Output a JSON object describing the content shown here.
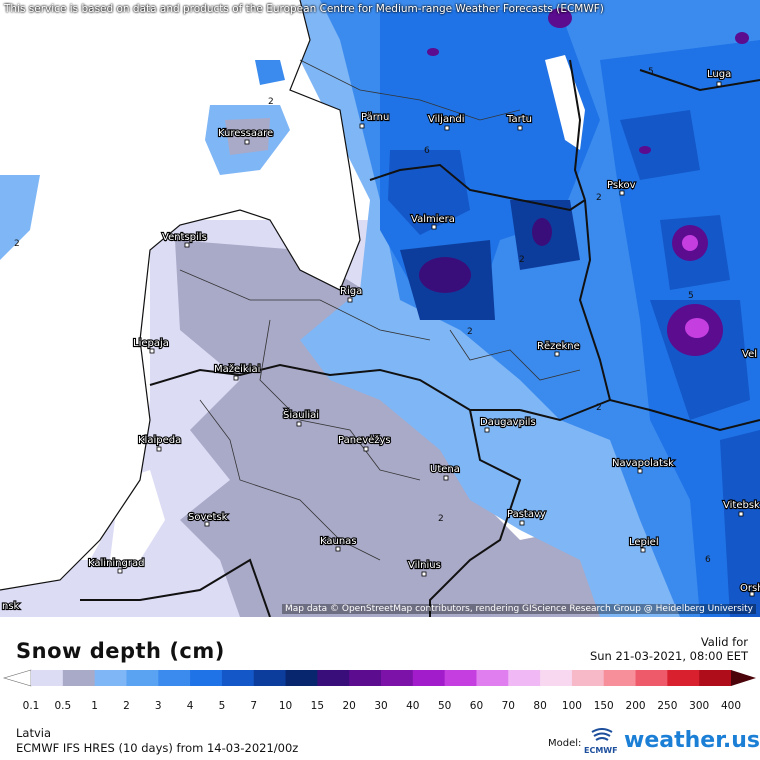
{
  "attribution_top": "This service is based on data and products of the European Centre for Medium-range Weather Forecasts (ECMWF)",
  "attribution_bottom": "Map data © OpenStreetMap contributors, rendering GIScience Research Group @ Heidelberg University",
  "title": "Snow depth (cm)",
  "valid_label": "Valid for",
  "valid_time": "Sun 21-03-2021, 08:00 EET",
  "region": "Latvia",
  "model_run": "ECMWF IFS HRES (10 days) from 14-03-2021/00z",
  "model_label": "Model:",
  "model_logo_text": "ECMWF",
  "brand": "weather.us",
  "legend": {
    "ticks": [
      "0.1",
      "0.5",
      "1",
      "2",
      "3",
      "4",
      "5",
      "7",
      "10",
      "15",
      "20",
      "30",
      "40",
      "50",
      "60",
      "70",
      "80",
      "100",
      "150",
      "200",
      "250",
      "300",
      "400"
    ],
    "colors": [
      "#dcdcf5",
      "#a9a9c8",
      "#7fb6f5",
      "#5aa2f2",
      "#3b8bef",
      "#1f73e6",
      "#1457c8",
      "#0c3d9c",
      "#08266e",
      "#3a0e7a",
      "#5b0c8f",
      "#7d12a8",
      "#a21ccc",
      "#c43ee0",
      "#e07ef0",
      "#f0b8f5",
      "#f7d8f0",
      "#f7b8c8",
      "#f78f9a",
      "#ee5a6a",
      "#d8202f",
      "#b00d1a",
      "#800812",
      "#4a040a"
    ]
  },
  "cities": [
    {
      "name": "Pärnu"
    },
    {
      "name": "Viljandi"
    },
    {
      "name": "Tartu"
    },
    {
      "name": "Luga"
    },
    {
      "name": "Kuressaare"
    },
    {
      "name": "Pskov"
    },
    {
      "name": "Valmiera"
    },
    {
      "name": "Ventspils"
    },
    {
      "name": "Riga"
    },
    {
      "name": "Liepaja"
    },
    {
      "name": "Rēzekne"
    },
    {
      "name": "Mažeikiai"
    },
    {
      "name": "Šiauliai"
    },
    {
      "name": "Klaipeda"
    },
    {
      "name": "Panevėžys"
    },
    {
      "name": "Daugavpils"
    },
    {
      "name": "Navapolatsk"
    },
    {
      "name": "Utena"
    },
    {
      "name": "Vitebsk"
    },
    {
      "name": "Sovetsk"
    },
    {
      "name": "Pastavy"
    },
    {
      "name": "Kaunas"
    },
    {
      "name": "Lepiel"
    },
    {
      "name": "Kaliningrad"
    },
    {
      "name": "Vilnius"
    },
    {
      "name": "Orsh"
    },
    {
      "name": "Vel"
    },
    {
      "name": "nsk"
    }
  ],
  "contour_labels": [
    "2",
    "5",
    "2",
    "6",
    "2",
    "2",
    "5",
    "2",
    "2",
    "2",
    "6"
  ]
}
